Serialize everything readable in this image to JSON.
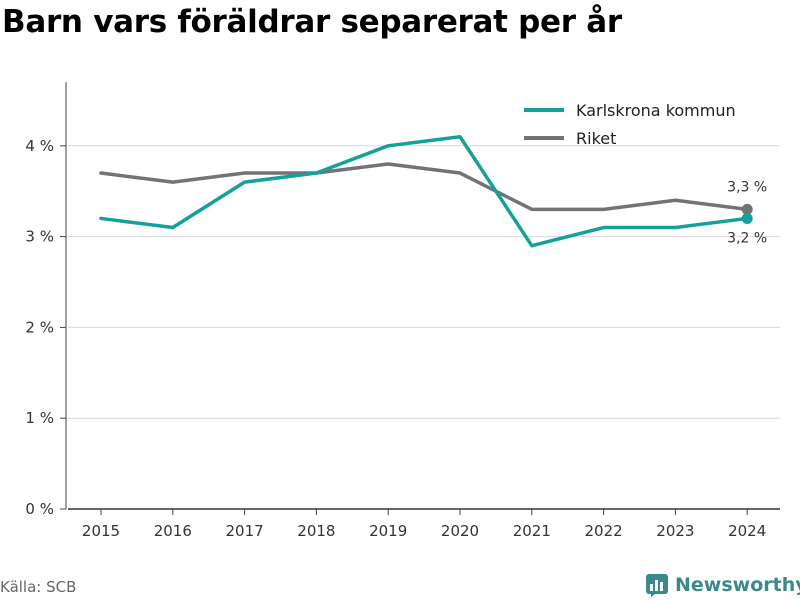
{
  "colors": {
    "karlskrona": "#13a19a",
    "riket": "#737373",
    "grid": "#d9d9d9",
    "brand": "#3a8a8a"
  },
  "chart_data": {
    "type": "line",
    "title": "Barn vars föräldrar separerat per år",
    "x": [
      "2015",
      "2016",
      "2017",
      "2018",
      "2019",
      "2020",
      "2021",
      "2022",
      "2023",
      "2024"
    ],
    "series": [
      {
        "name": "Karlskrona kommun",
        "values": [
          3.2,
          3.1,
          3.6,
          3.7,
          4.0,
          4.1,
          2.9,
          3.1,
          3.1,
          3.2
        ],
        "end_label": "3,2 %"
      },
      {
        "name": "Riket",
        "values": [
          3.7,
          3.6,
          3.7,
          3.7,
          3.8,
          3.7,
          3.3,
          3.3,
          3.4,
          3.3
        ],
        "end_label": "3,3 %"
      }
    ],
    "yticks": [
      0,
      1,
      2,
      3,
      4
    ],
    "ytick_labels": [
      "0 %",
      "1 %",
      "2 %",
      "3 %",
      "4 %"
    ],
    "ylim": [
      0,
      4.7
    ],
    "grid": true,
    "legend": "top-right"
  },
  "footer": {
    "source": "Källa: SCB",
    "brand": "Newsworthy"
  }
}
